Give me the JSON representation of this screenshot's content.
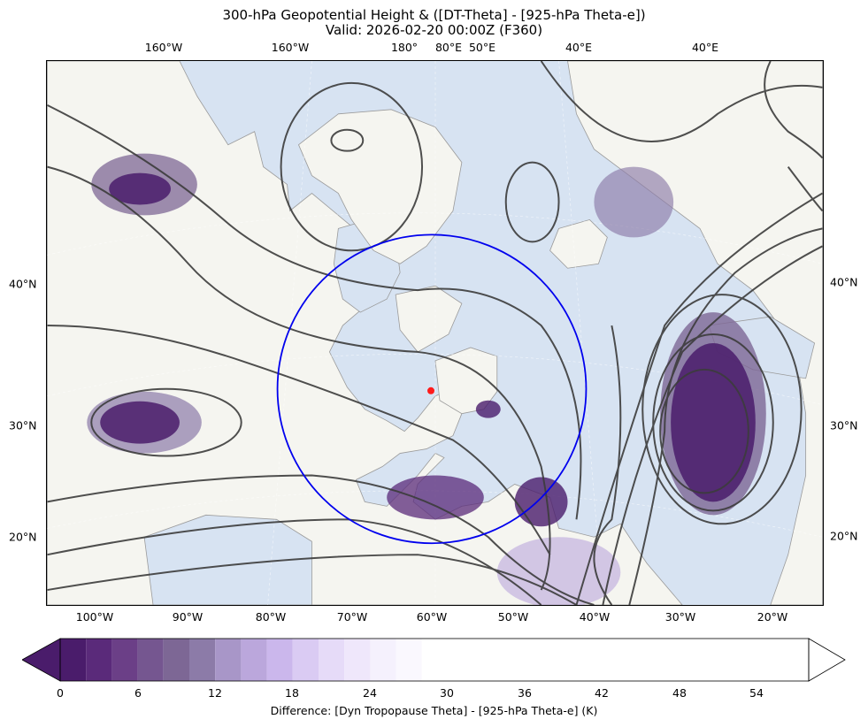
{
  "title": {
    "line1": "300-hPa Geopotential Height & ([DT-Theta] - [925-hPa Theta-e])",
    "line2": "Valid: 2026-02-20 00:00Z (F360)"
  },
  "map": {
    "projection": "polar stereographic (north)",
    "top_lon_labels": [
      "160°W",
      "160°W",
      "180°",
      "80°E",
      "50°E",
      "40°E",
      "40°E"
    ],
    "bottom_lon_labels": [
      "100°W",
      "90°W",
      "80°W",
      "70°W",
      "60°W",
      "50°W",
      "40°W",
      "30°W",
      "20°W"
    ],
    "left_lat_labels": [
      "40°N",
      "30°N",
      "20°N"
    ],
    "right_lat_labels": [
      "40°N",
      "30°N",
      "20°N"
    ],
    "colors": {
      "ocean": "#d7e3f2",
      "land": "#f5f5f0",
      "coastline": "#9a9a9a",
      "contour": "#3c3c3c",
      "circle": "#0000ee",
      "marker": "#ff1a1a"
    },
    "overlays": [
      "300-hPa geopotential height contours",
      "target circle",
      "center point marker"
    ]
  },
  "colorbar": {
    "label": "Difference: [Dyn Tropopause Theta] - [925-hPa Theta-e] (K)",
    "ticks": [
      "0",
      "6",
      "12",
      "18",
      "24",
      "30",
      "36",
      "42",
      "48",
      "54"
    ],
    "range": [
      0,
      57
    ],
    "extend": "both",
    "colors": [
      "#4a1c6b",
      "#5a2a7a",
      "#6b3f87",
      "#755690",
      "#7d6795",
      "#8c7ba8",
      "#a896c8",
      "#bba7dc",
      "#cbb7ec",
      "#dacbf3",
      "#e6dbf8",
      "#efe7fb",
      "#f5f1fd",
      "#faf8fe",
      "#ffffff"
    ]
  }
}
